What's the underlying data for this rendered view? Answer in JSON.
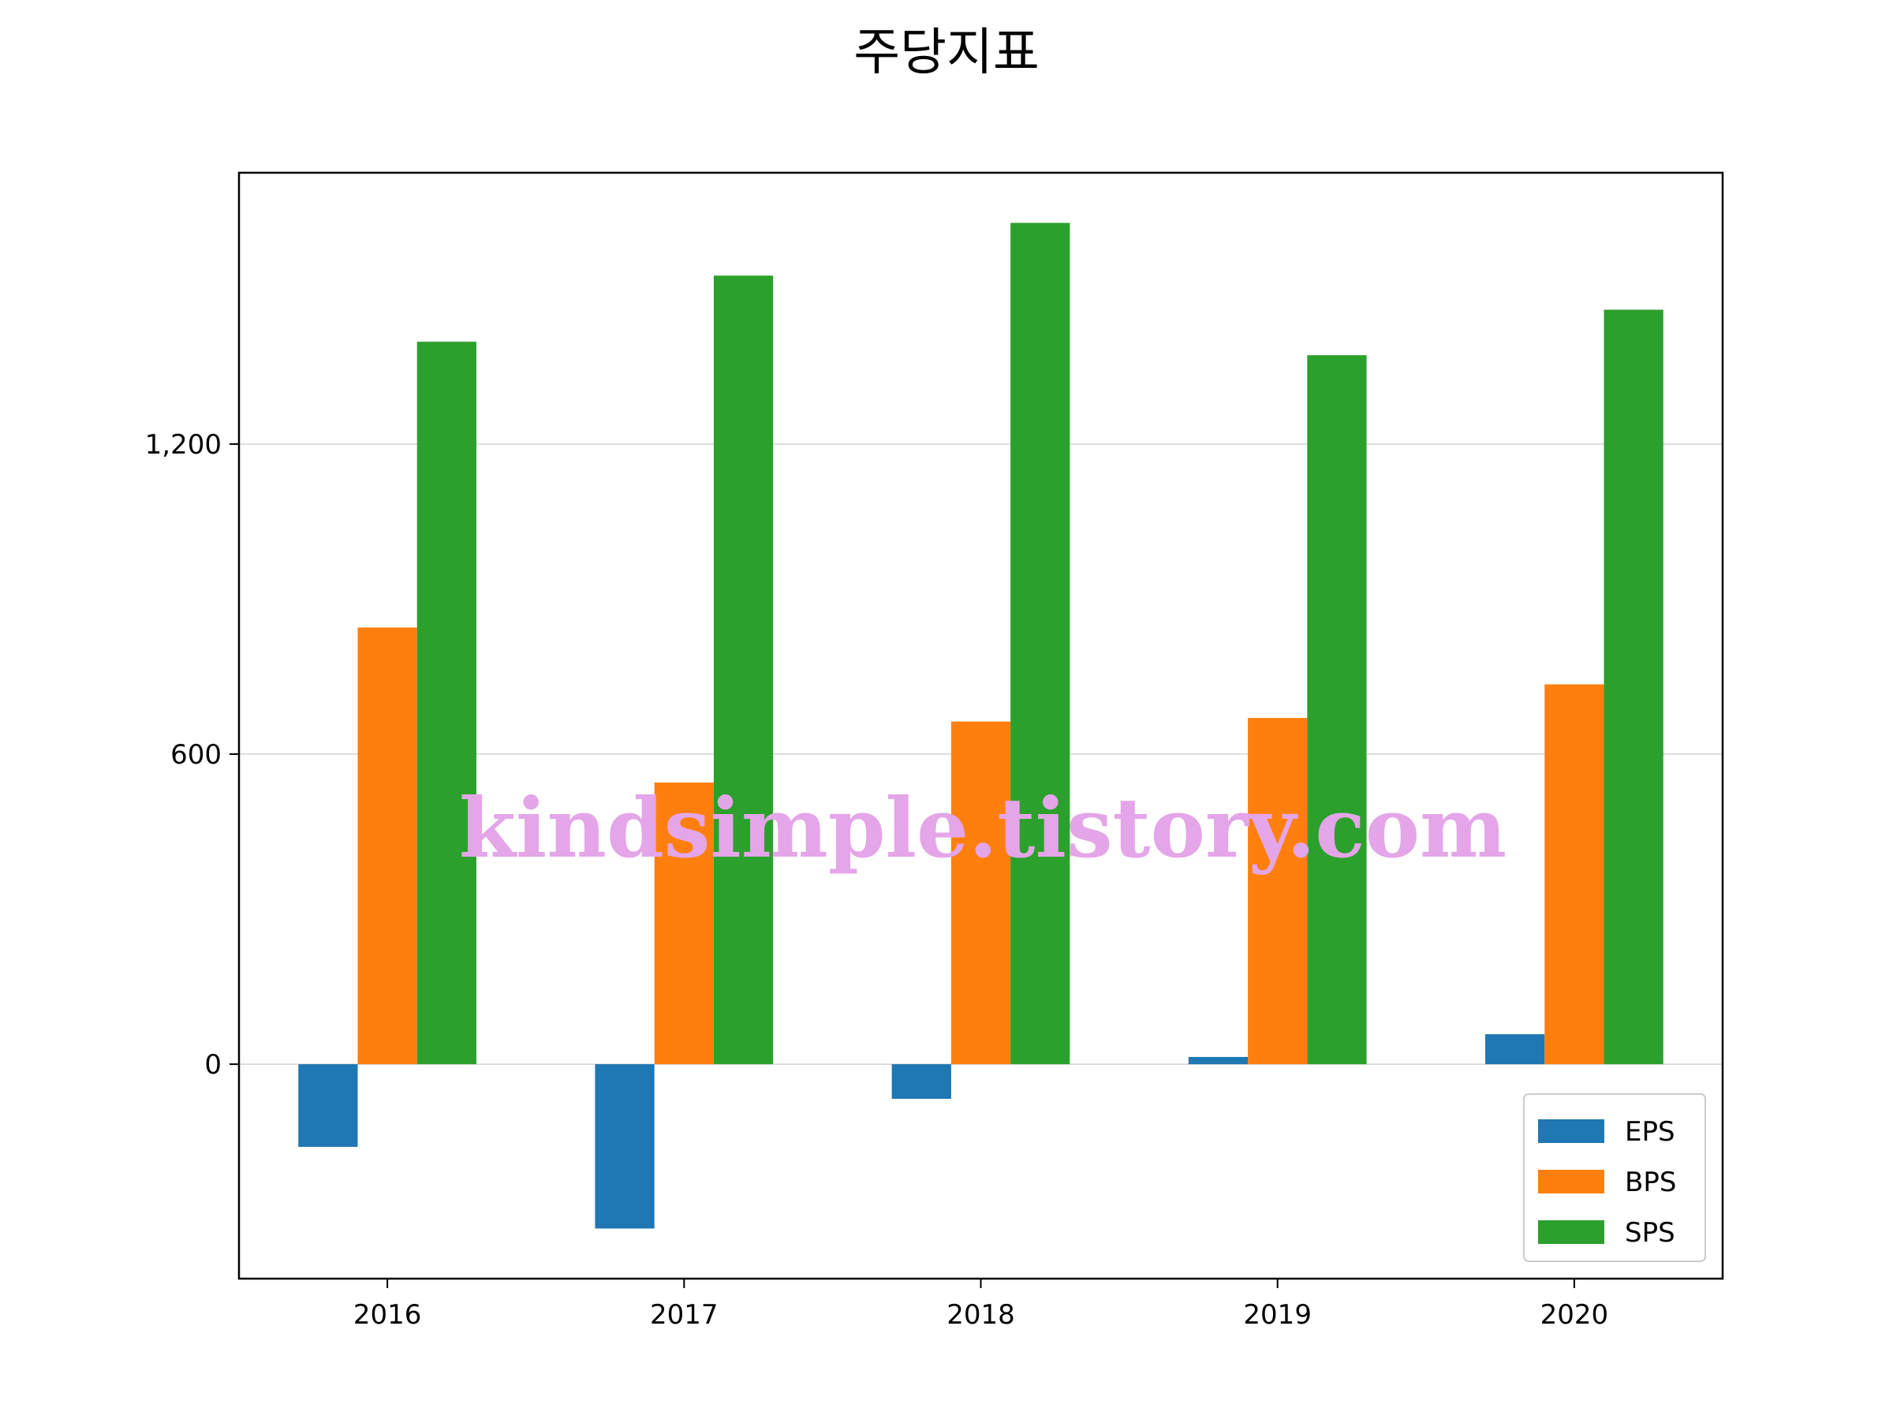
{
  "chart_data": {
    "type": "bar",
    "title": "주당지표",
    "categories": [
      "2016",
      "2017",
      "2018",
      "2019",
      "2020"
    ],
    "series": [
      {
        "name": "EPS",
        "color": "#1f77b4",
        "values": [
          -160,
          -318,
          -67,
          14,
          58
        ]
      },
      {
        "name": "BPS",
        "color": "#ff7f0e",
        "values": [
          845,
          545,
          663,
          670,
          735
        ]
      },
      {
        "name": "SPS",
        "color": "#2ca02c",
        "values": [
          1398,
          1526,
          1628,
          1372,
          1460
        ]
      }
    ],
    "yticks": [
      0,
      600,
      1200
    ],
    "ytick_labels": [
      "0",
      "600",
      "1,200"
    ],
    "ylim": [
      -415,
      1725
    ],
    "xlabel": "",
    "ylabel": "",
    "grid": "horizontal",
    "legend_position": "lower-right"
  },
  "watermark": "kindsimple.tistory.com"
}
